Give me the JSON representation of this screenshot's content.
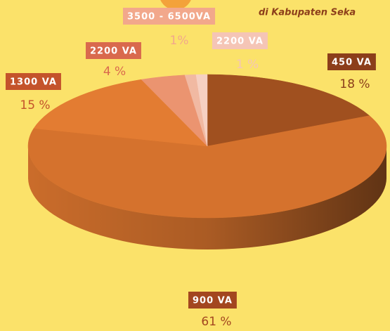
{
  "chart_data": {
    "type": "pie3d",
    "subtitle": "di Kabupaten Seka",
    "categories": [
      "450 VA",
      "900 VA",
      "1300 VA",
      "2200 VA",
      "3500 - 6500VA",
      "2200 VA"
    ],
    "values": [
      18,
      61,
      15,
      4,
      1,
      1
    ],
    "value_labels": [
      "18 %",
      "61 %",
      "15 %",
      "4 %",
      "1%",
      "1 %"
    ],
    "colors": [
      "#a0501f",
      "#d5722d",
      "#e37c32",
      "#eb9470",
      "#f1b9a2",
      "#f6d0c2"
    ],
    "label_colors": [
      "#8c3e1a",
      "#a3461f",
      "#c4532b",
      "#d9694d",
      "#f2a88b",
      "#f5c5b6"
    ]
  }
}
